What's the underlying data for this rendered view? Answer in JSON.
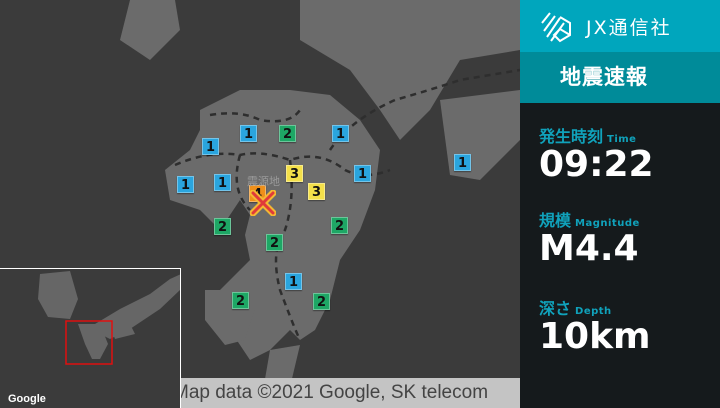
{
  "map": {
    "epicenter_label": "震源地",
    "attribution": "Map data ©2021 Google, SK telecom",
    "inset_logo": "Google",
    "intensity_colors": {
      "1": "#2aa5de",
      "2": "#1ea765",
      "3": "#f4e04a",
      "4": "#ef901a"
    },
    "markers": [
      "1",
      "1",
      "2",
      "1",
      "1",
      "1",
      "3",
      "3",
      "1",
      "1",
      "4",
      "2",
      "2",
      "2",
      "1",
      "2",
      "2"
    ]
  },
  "panel": {
    "brand": "JX通信社",
    "title": "地震速報",
    "time": {
      "label": "発生時刻",
      "label_en": "Time",
      "value": "09:22"
    },
    "magnitude": {
      "label": "規模",
      "label_en": "Magnitude",
      "value": "M4.4"
    },
    "depth": {
      "label": "深さ",
      "label_en": "Depth",
      "value": "10km"
    }
  }
}
